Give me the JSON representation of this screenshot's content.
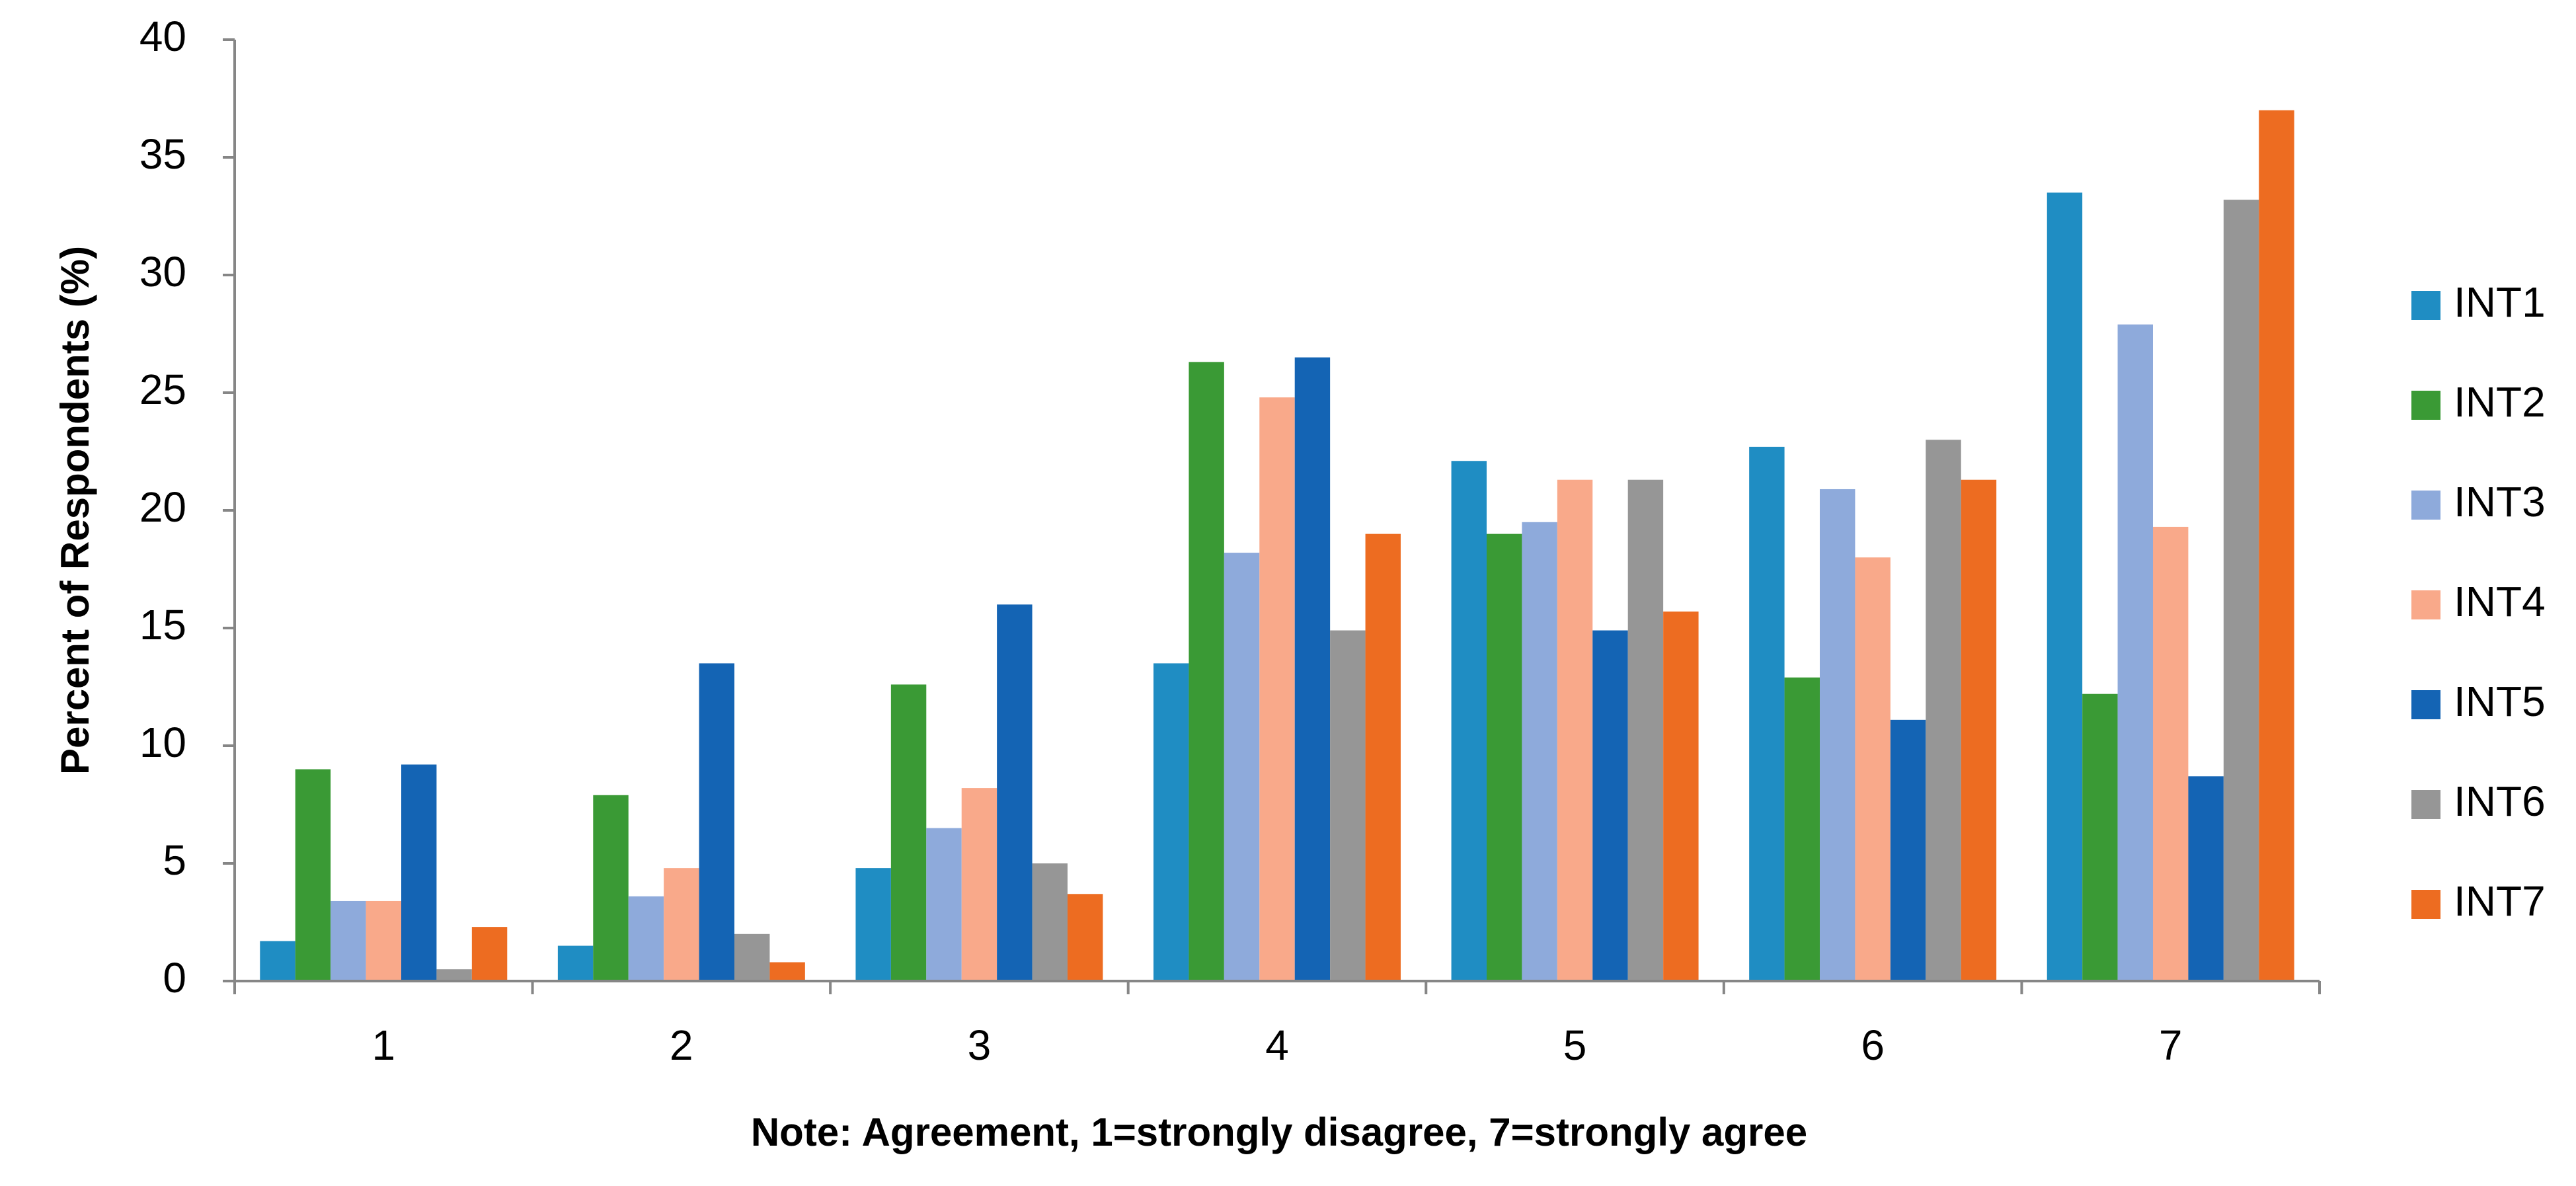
{
  "chart_data": {
    "type": "bar",
    "x_label": "Note: Agreement, 1=strongly disagree, 7=strongly agree",
    "y_label": "Percent of Respondents (%)",
    "categories": [
      "1",
      "2",
      "3",
      "4",
      "5",
      "6",
      "7"
    ],
    "series": [
      {
        "name": "INT1",
        "color": "#1f8dc3",
        "values": [
          1.7,
          1.5,
          4.8,
          13.5,
          22.1,
          22.7,
          33.5
        ]
      },
      {
        "name": "INT2",
        "color": "#3a9a35",
        "values": [
          9.0,
          7.9,
          12.6,
          26.3,
          19.0,
          12.9,
          12.2
        ]
      },
      {
        "name": "INT3",
        "color": "#8eaadb",
        "values": [
          3.4,
          3.6,
          6.5,
          18.2,
          19.5,
          20.9,
          27.9
        ]
      },
      {
        "name": "INT4",
        "color": "#f9a98a",
        "values": [
          3.4,
          4.8,
          8.2,
          24.8,
          21.3,
          18.0,
          19.3
        ]
      },
      {
        "name": "INT5",
        "color": "#1464b4",
        "values": [
          9.2,
          13.5,
          16.0,
          26.5,
          14.9,
          11.1,
          8.7
        ]
      },
      {
        "name": "INT6",
        "color": "#969696",
        "values": [
          0.5,
          2.0,
          5.0,
          14.9,
          21.3,
          23.0,
          33.2
        ]
      },
      {
        "name": "INT7",
        "color": "#ed6c21",
        "values": [
          2.3,
          0.8,
          3.7,
          19.0,
          15.7,
          21.3,
          37.0
        ]
      }
    ],
    "ylim": [
      0,
      40
    ],
    "yticks": [
      0,
      5,
      10,
      15,
      20,
      25,
      30,
      35,
      40
    ],
    "grid": false,
    "legend": "right"
  }
}
